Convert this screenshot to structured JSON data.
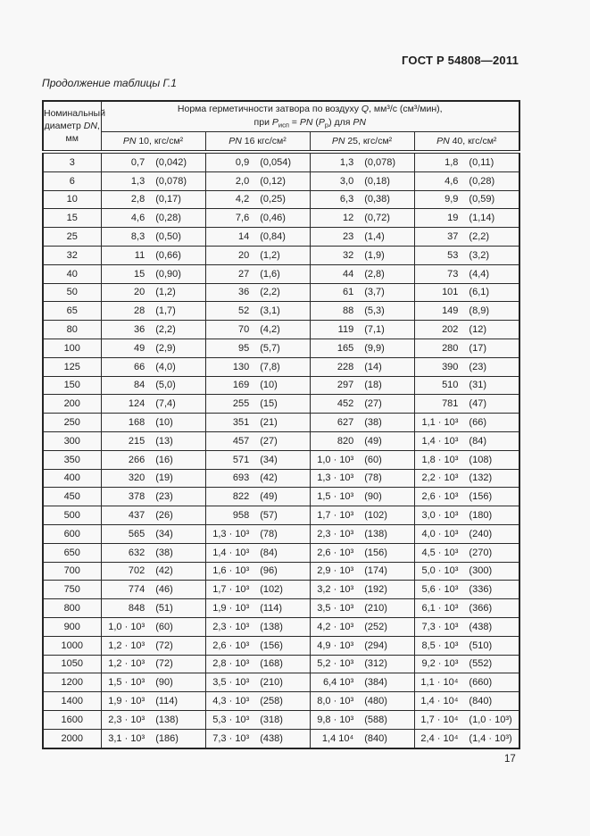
{
  "page": {
    "standard_number": "ГОСТ Р 54808—2011",
    "table_caption": "Продолжение таблицы Г.1",
    "page_number": "17"
  },
  "table": {
    "dn_header": {
      "line1": "Номинальный",
      "line2_pre": "диаметр ",
      "line2_it": "DN",
      "line2_post": ",",
      "line3": "мм"
    },
    "q_header": {
      "l1_text": "Норма герметичности затвора по воздуху ",
      "l1_q": "Q",
      "l1_rest": ", мм³/с (см³/мин),",
      "l2_pre": "при ",
      "l2_p1": "P",
      "l2_sub1": "исп",
      "l2_mid1": " = ",
      "l2_pn1": "PN",
      "l2_mid2": " (",
      "l2_p2": "P",
      "l2_sub2": "р",
      "l2_mid3": ") для ",
      "l2_pn2": "PN"
    },
    "pn_headers": [
      {
        "pn": "PN",
        "rest": " 10, кгс/см²"
      },
      {
        "pn": "PN",
        "rest": " 16 кгс/см²"
      },
      {
        "pn": "PN",
        "rest": " 25, кгс/см²"
      },
      {
        "pn": "PN",
        "rest": " 40, кгс/см²"
      }
    ],
    "rows": [
      {
        "dn": "3",
        "cells": [
          [
            "0,7",
            "(0,042)"
          ],
          [
            "0,9",
            "(0,054)"
          ],
          [
            "1,3",
            "(0,078)"
          ],
          [
            "1,8",
            "(0,11)"
          ]
        ]
      },
      {
        "dn": "6",
        "cells": [
          [
            "1,3",
            "(0,078)"
          ],
          [
            "2,0",
            "(0,12)"
          ],
          [
            "3,0",
            "(0,18)"
          ],
          [
            "4,6",
            "(0,28)"
          ]
        ]
      },
      {
        "dn": "10",
        "cells": [
          [
            "2,8",
            "(0,17)"
          ],
          [
            "4,2",
            "(0,25)"
          ],
          [
            "6,3",
            "(0,38)"
          ],
          [
            "9,9",
            "(0,59)"
          ]
        ]
      },
      {
        "dn": "15",
        "cells": [
          [
            "4,6",
            "(0,28)"
          ],
          [
            "7,6",
            "(0,46)"
          ],
          [
            "12",
            "(0,72)"
          ],
          [
            "19",
            "(1,14)"
          ]
        ]
      },
      {
        "dn": "25",
        "cells": [
          [
            "8,3",
            "(0,50)"
          ],
          [
            "14",
            "(0,84)"
          ],
          [
            "23",
            "(1,4)"
          ],
          [
            "37",
            "(2,2)"
          ]
        ]
      },
      {
        "dn": "32",
        "cells": [
          [
            "11",
            "(0,66)"
          ],
          [
            "20",
            "(1,2)"
          ],
          [
            "32",
            "(1,9)"
          ],
          [
            "53",
            "(3,2)"
          ]
        ]
      },
      {
        "dn": "40",
        "cells": [
          [
            "15",
            "(0,90)"
          ],
          [
            "27",
            "(1,6)"
          ],
          [
            "44",
            "(2,8)"
          ],
          [
            "73",
            "(4,4)"
          ]
        ]
      },
      {
        "dn": "50",
        "cells": [
          [
            "20",
            "(1,2)"
          ],
          [
            "36",
            "(2,2)"
          ],
          [
            "61",
            "(3,7)"
          ],
          [
            "101",
            "(6,1)"
          ]
        ]
      },
      {
        "dn": "65",
        "cells": [
          [
            "28",
            "(1,7)"
          ],
          [
            "52",
            "(3,1)"
          ],
          [
            "88",
            "(5,3)"
          ],
          [
            "149",
            "(8,9)"
          ]
        ]
      },
      {
        "dn": "80",
        "cells": [
          [
            "36",
            "(2,2)"
          ],
          [
            "70",
            "(4,2)"
          ],
          [
            "119",
            "(7,1)"
          ],
          [
            "202",
            "(12)"
          ]
        ]
      },
      {
        "dn": "100",
        "cells": [
          [
            "49",
            "(2,9)"
          ],
          [
            "95",
            "(5,7)"
          ],
          [
            "165",
            "(9,9)"
          ],
          [
            "280",
            "(17)"
          ]
        ]
      },
      {
        "dn": "125",
        "cells": [
          [
            "66",
            "(4,0)"
          ],
          [
            "130",
            "(7,8)"
          ],
          [
            "228",
            "(14)"
          ],
          [
            "390",
            "(23)"
          ]
        ]
      },
      {
        "dn": "150",
        "cells": [
          [
            "84",
            "(5,0)"
          ],
          [
            "169",
            "(10)"
          ],
          [
            "297",
            "(18)"
          ],
          [
            "510",
            "(31)"
          ]
        ]
      },
      {
        "dn": "200",
        "cells": [
          [
            "124",
            "(7,4)"
          ],
          [
            "255",
            "(15)"
          ],
          [
            "452",
            "(27)"
          ],
          [
            "781",
            "(47)"
          ]
        ]
      },
      {
        "dn": "250",
        "cells": [
          [
            "168",
            "(10)"
          ],
          [
            "351",
            "(21)"
          ],
          [
            "627",
            "(38)"
          ],
          [
            "1,1 · 10³",
            "(66)"
          ]
        ]
      },
      {
        "dn": "300",
        "cells": [
          [
            "215",
            "(13)"
          ],
          [
            "457",
            "(27)"
          ],
          [
            "820",
            "(49)"
          ],
          [
            "1,4 · 10³",
            "(84)"
          ]
        ]
      },
      {
        "dn": "350",
        "cells": [
          [
            "266",
            "(16)"
          ],
          [
            "571",
            "(34)"
          ],
          [
            "1,0 · 10³",
            "(60)"
          ],
          [
            "1,8 · 10³",
            "(108)"
          ]
        ]
      },
      {
        "dn": "400",
        "cells": [
          [
            "320",
            "(19)"
          ],
          [
            "693",
            "(42)"
          ],
          [
            "1,3 · 10³",
            "(78)"
          ],
          [
            "2,2 · 10³",
            "(132)"
          ]
        ]
      },
      {
        "dn": "450",
        "cells": [
          [
            "378",
            "(23)"
          ],
          [
            "822",
            "(49)"
          ],
          [
            "1,5 · 10³",
            "(90)"
          ],
          [
            "2,6 · 10³",
            "(156)"
          ]
        ]
      },
      {
        "dn": "500",
        "cells": [
          [
            "437",
            "(26)"
          ],
          [
            "958",
            "(57)"
          ],
          [
            "1,7 · 10³",
            "(102)"
          ],
          [
            "3,0 · 10³",
            "(180)"
          ]
        ]
      },
      {
        "dn": "600",
        "cells": [
          [
            "565",
            "(34)"
          ],
          [
            "1,3 · 10³",
            "(78)"
          ],
          [
            "2,3 · 10³",
            "(138)"
          ],
          [
            "4,0 · 10³",
            "(240)"
          ]
        ]
      },
      {
        "dn": "650",
        "cells": [
          [
            "632",
            "(38)"
          ],
          [
            "1,4 · 10³",
            "(84)"
          ],
          [
            "2,6 · 10³",
            "(156)"
          ],
          [
            "4,5 · 10³",
            "(270)"
          ]
        ]
      },
      {
        "dn": "700",
        "cells": [
          [
            "702",
            "(42)"
          ],
          [
            "1,6 · 10³",
            "(96)"
          ],
          [
            "2,9 · 10³",
            "(174)"
          ],
          [
            "5,0 · 10³",
            "(300)"
          ]
        ]
      },
      {
        "dn": "750",
        "cells": [
          [
            "774",
            "(46)"
          ],
          [
            "1,7 · 10³",
            "(102)"
          ],
          [
            "3,2 · 10³",
            "(192)"
          ],
          [
            "5,6 · 10³",
            "(336)"
          ]
        ]
      },
      {
        "dn": "800",
        "cells": [
          [
            "848",
            "(51)"
          ],
          [
            "1,9 · 10³",
            "(114)"
          ],
          [
            "3,5 · 10³",
            "(210)"
          ],
          [
            "6,1 · 10³",
            "(366)"
          ]
        ]
      },
      {
        "dn": "900",
        "cells": [
          [
            "1,0 · 10³",
            "(60)"
          ],
          [
            "2,3 · 10³",
            "(138)"
          ],
          [
            "4,2 · 10³",
            "(252)"
          ],
          [
            "7,3 · 10³",
            "(438)"
          ]
        ]
      },
      {
        "dn": "1000",
        "cells": [
          [
            "1,2 · 10³",
            "(72)"
          ],
          [
            "2,6 · 10³",
            "(156)"
          ],
          [
            "4,9 · 10³",
            "(294)"
          ],
          [
            "8,5 · 10³",
            "(510)"
          ]
        ]
      },
      {
        "dn": "1050",
        "cells": [
          [
            "1,2 · 10³",
            "(72)"
          ],
          [
            "2,8 · 10³",
            "(168)"
          ],
          [
            "5,2 · 10³",
            "(312)"
          ],
          [
            "9,2 · 10³",
            "(552)"
          ]
        ]
      },
      {
        "dn": "1200",
        "cells": [
          [
            "1,5 · 10³",
            "(90)"
          ],
          [
            "3,5 · 10³",
            "(210)"
          ],
          [
            "6,4 10³",
            "(384)"
          ],
          [
            "1,1 · 10⁴",
            "(660)"
          ]
        ]
      },
      {
        "dn": "1400",
        "cells": [
          [
            "1,9 · 10³",
            "(114)"
          ],
          [
            "4,3 · 10³",
            "(258)"
          ],
          [
            "8,0 · 10³",
            "(480)"
          ],
          [
            "1,4 · 10⁴",
            "(840)"
          ]
        ]
      },
      {
        "dn": "1600",
        "cells": [
          [
            "2,3 · 10³",
            "(138)"
          ],
          [
            "5,3 · 10³",
            "(318)"
          ],
          [
            "9,8 · 10³",
            "(588)"
          ],
          [
            "1,7 · 10⁴",
            "(1,0 · 10³)"
          ]
        ]
      },
      {
        "dn": "2000",
        "cells": [
          [
            "3,1 · 10³",
            "(186)"
          ],
          [
            "7,3 · 10³",
            "(438)"
          ],
          [
            "1,4 10⁴",
            "(840)"
          ],
          [
            "2,4 · 10⁴",
            "(1,4 · 10³)"
          ]
        ]
      }
    ]
  }
}
